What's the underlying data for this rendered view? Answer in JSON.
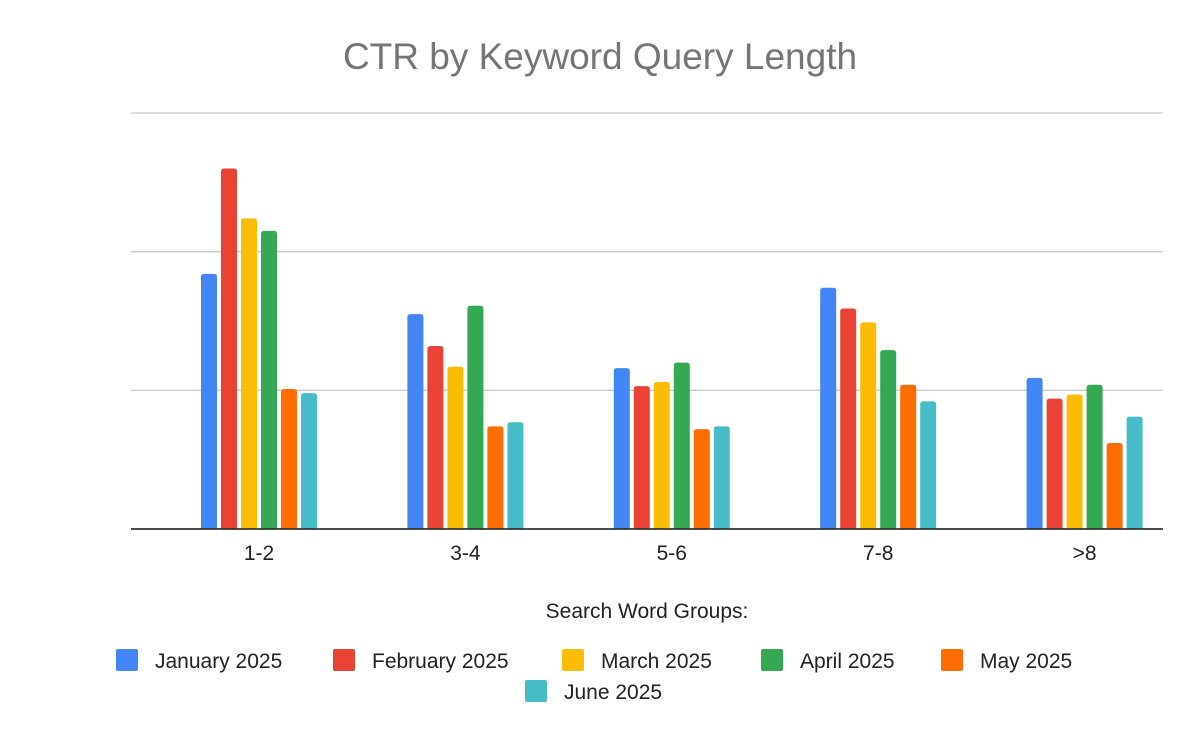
{
  "chart_data": {
    "type": "bar",
    "title": "CTR by Keyword Query Length",
    "xlabel": "Search Word Groups:",
    "ylabel": "",
    "categories": [
      "1-2",
      "3-4",
      "5-6",
      "7-8",
      ">8"
    ],
    "ylim": [
      0,
      3
    ],
    "gridlines": [
      0,
      1,
      2,
      3
    ],
    "ytick_labels_visible": false,
    "grid": true,
    "legend_position": "bottom",
    "series": [
      {
        "name": "January 2025",
        "color": "#4285F4",
        "values": [
          1.84,
          1.55,
          1.16,
          1.74,
          1.09
        ]
      },
      {
        "name": "February 2025",
        "color": "#EA4335",
        "values": [
          2.6,
          1.32,
          1.03,
          1.59,
          0.94
        ]
      },
      {
        "name": "March 2025",
        "color": "#FBBC04",
        "values": [
          2.24,
          1.17,
          1.06,
          1.49,
          0.97
        ]
      },
      {
        "name": "April 2025",
        "color": "#34A853",
        "values": [
          2.15,
          1.61,
          1.2,
          1.29,
          1.04
        ]
      },
      {
        "name": "May 2025",
        "color": "#FF6D01",
        "values": [
          1.01,
          0.74,
          0.72,
          1.04,
          0.62
        ]
      },
      {
        "name": "June 2025",
        "color": "#46BDC6",
        "values": [
          0.98,
          0.77,
          0.74,
          0.92,
          0.81
        ]
      }
    ]
  }
}
